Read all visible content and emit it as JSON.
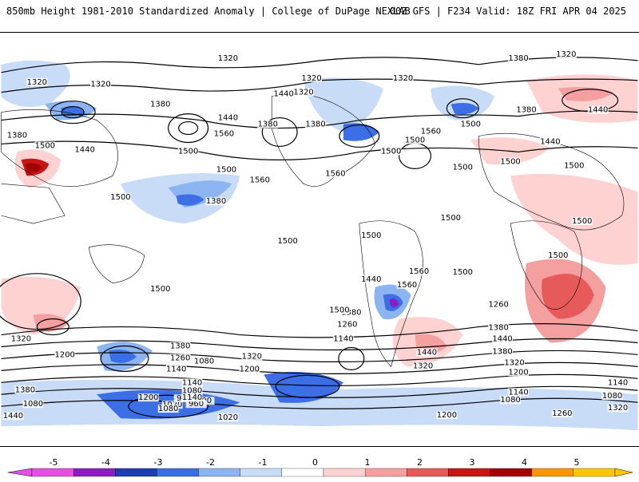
{
  "header": {
    "title_left": "850mb Height 1981-2010 Standardized Anomaly | College of DuPage NEXLAB",
    "title_right": "00Z GFS | F234 Valid: 18Z FRI APR 04 2025"
  },
  "colorbar": {
    "ticks": [
      "-5",
      "-4",
      "-3",
      "-2",
      "-1",
      "0",
      "1",
      "2",
      "3",
      "4",
      "5"
    ],
    "colors": [
      "#e64ee6",
      "#8c1cc8",
      "#1e3cb4",
      "#3c6ee6",
      "#8cb4f0",
      "#c8dcf8",
      "#ffffff",
      "#ffd2d2",
      "#f5a0a0",
      "#e65a5a",
      "#c81414",
      "#a00000",
      "#ff9600",
      "#ffc800"
    ]
  },
  "map": {
    "contour_labels": [
      "1380",
      "1320",
      "1320",
      "1320",
      "1380",
      "1320",
      "1380",
      "1320",
      "1320",
      "1380",
      "1440",
      "1380",
      "1440",
      "1380",
      "1500",
      "1440",
      "1500",
      "1560",
      "1500",
      "1560",
      "1500",
      "1560",
      "1500",
      "1440",
      "1500",
      "1500",
      "1500",
      "1380",
      "1440",
      "1380",
      "1500",
      "1560",
      "1500",
      "1500",
      "1500",
      "1560",
      "1500",
      "1500",
      "1500",
      "1500",
      "1560",
      "1440",
      "1500",
      "1380",
      "1260",
      "1140",
      "1500",
      "1380",
      "1260",
      "1440",
      "1320",
      "1200",
      "1380",
      "1260",
      "1140",
      "1080",
      "1320",
      "1200",
      "1140",
      "1080",
      "1020",
      "960",
      "900",
      "960",
      "1020",
      "1080",
      "1140",
      "1200",
      "1200",
      "1260",
      "1320",
      "1440",
      "1380",
      "1320",
      "1200",
      "1140",
      "1080",
      "1140",
      "1080",
      "1320",
      "1380",
      "1080",
      "1440",
      "1320"
    ]
  }
}
